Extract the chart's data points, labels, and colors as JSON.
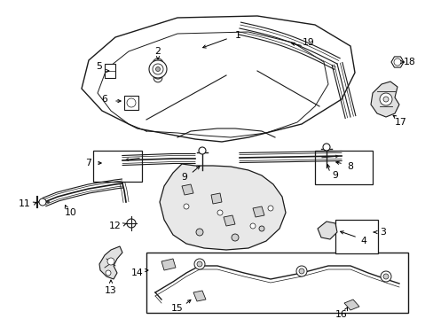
{
  "bg": "#ffffff",
  "lc": "#1a1a1a",
  "figsize": [
    4.89,
    3.6
  ],
  "dpi": 100,
  "xlim": [
    0,
    489
  ],
  "ylim": [
    0,
    360
  ]
}
